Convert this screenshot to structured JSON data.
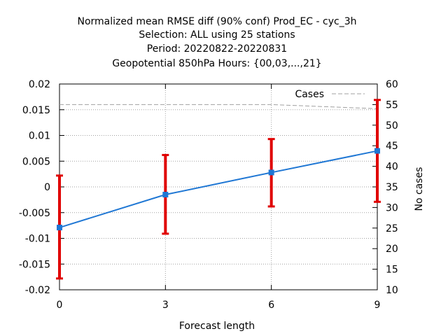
{
  "chart_data": {
    "type": "line",
    "title_lines": [
      "Normalized mean RMSE diff (90% conf) Prod_EC - cyc_3h",
      "Selection: ALL using    25 stations",
      "Period: 20220822-20220831",
      "Geopotential 850hPa   Hours: {00,03,...,21}"
    ],
    "xlabel": "Forecast length",
    "ylabel": "",
    "y2label": "No cases",
    "x_ticks": [
      "0",
      "3",
      "6",
      "9"
    ],
    "y_ticks": [
      "0.02",
      "0.015",
      "0.01",
      "0.005",
      "0",
      "-0.005",
      "-0.01",
      "-0.015",
      "-0.02"
    ],
    "y2_ticks": [
      "60",
      "55",
      "50",
      "45",
      "40",
      "35",
      "30",
      "25",
      "20",
      "15",
      "10"
    ],
    "xlim": [
      0,
      9
    ],
    "ylim": [
      -0.02,
      0.02
    ],
    "y2lim": [
      10,
      60
    ],
    "grid": true,
    "legend_position": "top-right",
    "series": [
      {
        "name": "",
        "axis": "left",
        "color": "#1f77d4",
        "x": [
          0,
          3,
          6,
          9
        ],
        "y": [
          -0.0079,
          -0.0015,
          0.0028,
          0.007
        ],
        "err_low": [
          -0.0178,
          -0.0091,
          -0.0038,
          -0.0029
        ],
        "err_high": [
          0.0022,
          0.0062,
          0.0093,
          0.0169
        ],
        "err_color": "#e00000"
      },
      {
        "name": "Cases",
        "axis": "right",
        "color": "#a0a0a0",
        "x": [
          0,
          3,
          6,
          9
        ],
        "y": [
          55,
          55,
          55,
          54
        ]
      }
    ]
  }
}
